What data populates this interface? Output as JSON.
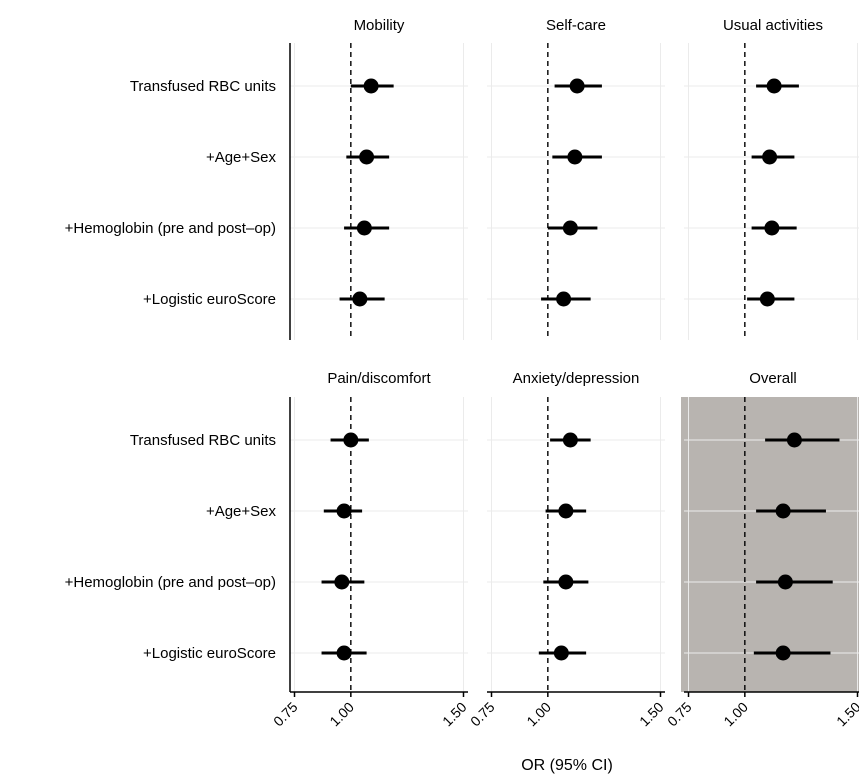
{
  "chart_data": {
    "type": "forest",
    "x_label": "OR (95% CI)",
    "x_ticks": [
      0.75,
      1.0,
      1.5
    ],
    "x_tick_labels": [
      "0.75",
      "1.00",
      "1.50"
    ],
    "xlim": [
      0.73,
      1.52
    ],
    "reference_line": 1.0,
    "rows": [
      "Transfused RBC units",
      "+Age+Sex",
      "+Hemoglobin (pre and post–op)",
      "+Logistic euroScore"
    ],
    "highlight_panel": "Overall",
    "highlight_color": "#b8b4b0",
    "panels": [
      {
        "title": "Mobility",
        "or": [
          1.09,
          1.07,
          1.06,
          1.04
        ],
        "lower": [
          1.0,
          0.98,
          0.97,
          0.95
        ],
        "upper": [
          1.19,
          1.17,
          1.17,
          1.15
        ]
      },
      {
        "title": "Self-care",
        "or": [
          1.13,
          1.12,
          1.1,
          1.07
        ],
        "lower": [
          1.03,
          1.02,
          1.0,
          0.97
        ],
        "upper": [
          1.24,
          1.24,
          1.22,
          1.19
        ]
      },
      {
        "title": "Usual activities",
        "or": [
          1.13,
          1.11,
          1.12,
          1.1
        ],
        "lower": [
          1.05,
          1.03,
          1.03,
          1.01
        ],
        "upper": [
          1.24,
          1.22,
          1.23,
          1.22
        ]
      },
      {
        "title": "Pain/discomfort",
        "or": [
          1.0,
          0.97,
          0.96,
          0.97
        ],
        "lower": [
          0.91,
          0.88,
          0.87,
          0.87
        ],
        "upper": [
          1.08,
          1.05,
          1.06,
          1.07
        ]
      },
      {
        "title": "Anxiety/depression",
        "or": [
          1.1,
          1.08,
          1.08,
          1.06
        ],
        "lower": [
          1.01,
          0.99,
          0.98,
          0.96
        ],
        "upper": [
          1.19,
          1.17,
          1.18,
          1.17
        ]
      },
      {
        "title": "Overall",
        "or": [
          1.22,
          1.17,
          1.18,
          1.17
        ],
        "lower": [
          1.09,
          1.05,
          1.05,
          1.04
        ],
        "upper": [
          1.42,
          1.36,
          1.39,
          1.38
        ]
      }
    ]
  }
}
